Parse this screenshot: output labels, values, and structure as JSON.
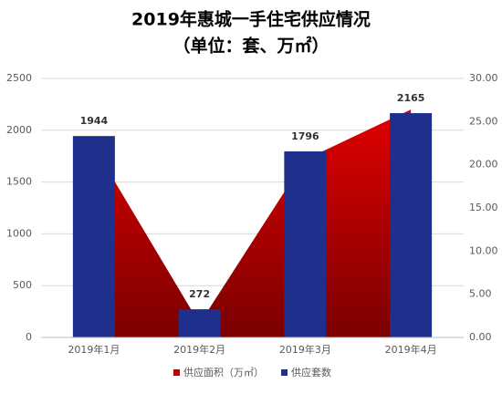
{
  "chart_data": {
    "type": "bar",
    "title": "2019年惠城一手住宅供应情况",
    "subtitle": "（单位：套、万㎡）",
    "categories": [
      "2019年1月",
      "2019年2月",
      "2019年3月",
      "2019年4月"
    ],
    "series": [
      {
        "name": "供应面积（万㎡）",
        "type": "area",
        "color": "#c00000",
        "axis": "y2",
        "values": [
          22.1,
          1.6,
          20.6,
          26.4
        ]
      },
      {
        "name": "供应套数",
        "type": "bar",
        "color": "#1f2f8c",
        "values": [
          1944,
          272,
          1796,
          2165
        ]
      }
    ],
    "ylim": [
      0,
      2500
    ],
    "yticks": [
      0,
      500,
      1000,
      1500,
      2000,
      2500
    ],
    "y2lim": [
      0,
      30
    ],
    "y2ticks": [
      {
        "value": 0,
        "label": "0.00"
      },
      {
        "value": 5,
        "label": "5.00"
      },
      {
        "value": 10,
        "label": "10.00"
      },
      {
        "value": 15,
        "label": "15.00"
      },
      {
        "value": 20,
        "label": "20.00"
      },
      {
        "value": 25,
        "label": "25.00"
      },
      {
        "value": 30,
        "label": "30.00"
      }
    ],
    "grid": true,
    "legend": "bottom"
  }
}
